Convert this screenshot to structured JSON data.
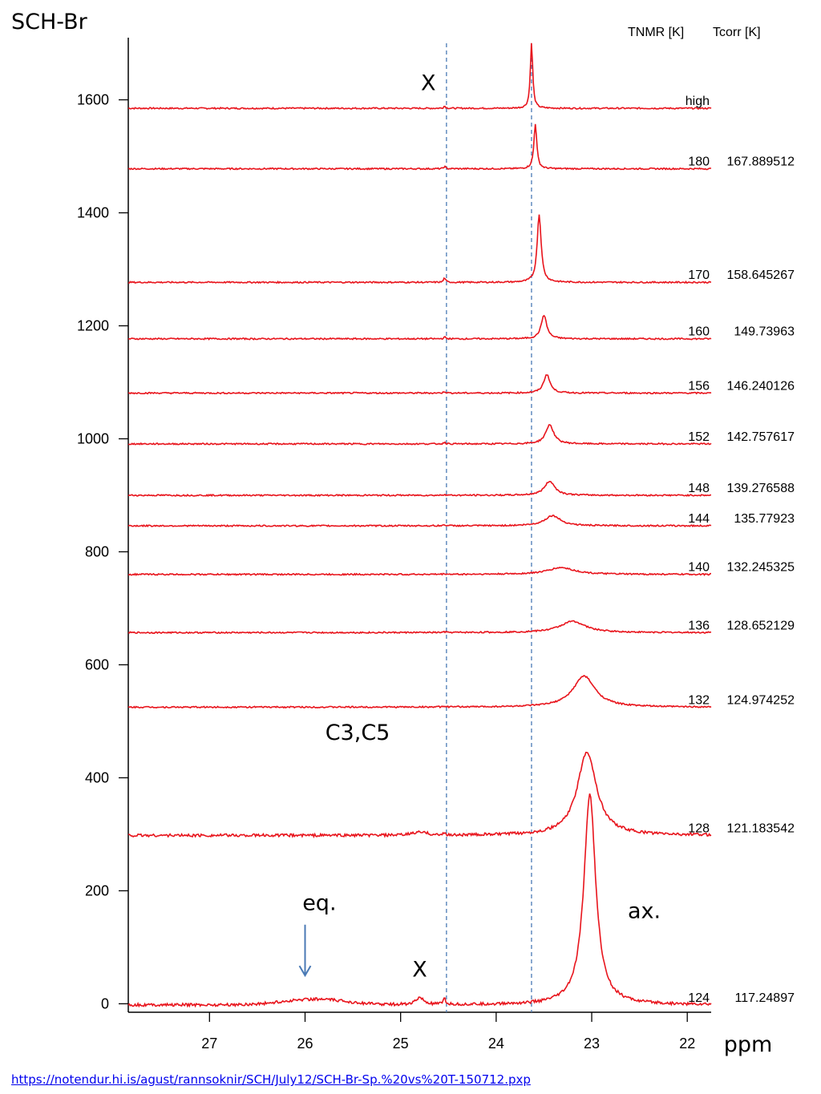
{
  "chart_data": {
    "type": "line",
    "title": "SCH-Br",
    "xlabel": "ppm",
    "ylabel": "",
    "xlim": [
      27.85,
      21.75
    ],
    "ylim": [
      -15,
      1710
    ],
    "x_ticks": [
      27,
      26,
      25,
      24,
      23,
      22
    ],
    "y_ticks": [
      0,
      200,
      400,
      600,
      800,
      1000,
      1200,
      1400,
      1600
    ],
    "grid": false,
    "legend_headers": {
      "tnmr": "TNMR [K]",
      "tcorr": "Tcorr [K]"
    },
    "reference_lines_ppm": [
      24.52,
      23.63
    ],
    "series": [
      {
        "tnmr": "high",
        "tcorr": "",
        "baseline": 1585,
        "peak_ppm": 23.63,
        "peak_height": 115,
        "peak_width": 0.015,
        "x_height": 4
      },
      {
        "tnmr": "180",
        "tcorr": "167.889512",
        "baseline": 1478,
        "peak_ppm": 23.59,
        "peak_height": 80,
        "peak_width": 0.018,
        "x_height": 4
      },
      {
        "tnmr": "170",
        "tcorr": "158.645267",
        "baseline": 1277,
        "peak_ppm": 23.55,
        "peak_height": 120,
        "peak_width": 0.025,
        "x_height": 8
      },
      {
        "tnmr": "160",
        "tcorr": "149.73963",
        "baseline": 1177,
        "peak_ppm": 23.5,
        "peak_height": 42,
        "peak_width": 0.035,
        "x_height": 3
      },
      {
        "tnmr": "156",
        "tcorr": "146.240126",
        "baseline": 1081,
        "peak_ppm": 23.47,
        "peak_height": 33,
        "peak_width": 0.04,
        "x_height": 3
      },
      {
        "tnmr": "152",
        "tcorr": "142.757617",
        "baseline": 991,
        "peak_ppm": 23.44,
        "peak_height": 34,
        "peak_width": 0.05,
        "x_height": 3
      },
      {
        "tnmr": "148",
        "tcorr": "139.276588",
        "baseline": 900,
        "peak_ppm": 23.44,
        "peak_height": 25,
        "peak_width": 0.065,
        "x_height": 2
      },
      {
        "tnmr": "144",
        "tcorr": "135.77923",
        "baseline": 846,
        "peak_ppm": 23.41,
        "peak_height": 18,
        "peak_width": 0.1,
        "x_height": 2
      },
      {
        "tnmr": "140",
        "tcorr": "132.245325",
        "baseline": 760,
        "peak_ppm": 23.32,
        "peak_height": 12,
        "peak_width": 0.17,
        "x_height": 1
      },
      {
        "tnmr": "136",
        "tcorr": "128.652129",
        "baseline": 657,
        "peak_ppm": 23.2,
        "peak_height": 20,
        "peak_width": 0.16,
        "x_height": 1
      },
      {
        "tnmr": "132",
        "tcorr": "124.974252",
        "baseline": 525,
        "peak_ppm": 23.08,
        "peak_height": 55,
        "peak_width": 0.14,
        "x_height": 1
      },
      {
        "tnmr": "128",
        "tcorr": "121.183542",
        "baseline": 298,
        "peak_ppm": 23.05,
        "peak_height": 148,
        "peak_width": 0.12,
        "x_height": 4
      },
      {
        "tnmr": "124",
        "tcorr": "117.24897",
        "baseline": -2,
        "peak_ppm": 23.02,
        "peak_height": 372,
        "peak_width": 0.075,
        "x_height": 12
      }
    ],
    "annotations": [
      {
        "text": "X",
        "x": 24.71,
        "y": 1617
      },
      {
        "text": "C3,C5",
        "x": 25.45,
        "y": 467
      },
      {
        "text": "eq.",
        "x": 25.85,
        "y": 166
      },
      {
        "text": "ax.",
        "x": 22.45,
        "y": 152
      },
      {
        "text": "X",
        "x": 24.8,
        "y": 48
      }
    ],
    "arrow": {
      "x": 26.0,
      "y_from": 140,
      "y_to": 50,
      "color": "#4a7ab5"
    }
  },
  "header": {
    "title": "SCH-Br",
    "tnmr_label": "TNMR [K]",
    "tcorr_label": "Tcorr [K]"
  },
  "footer": {
    "link_text": "https://notendur.hi.is/agust/rannsoknir/SCH/July12/SCH-Br-Sp.%20vs%20T-150712.pxp"
  },
  "colors": {
    "trace": "#e8141c",
    "reference_line": "#4a7ab5",
    "axis": "#000000"
  }
}
